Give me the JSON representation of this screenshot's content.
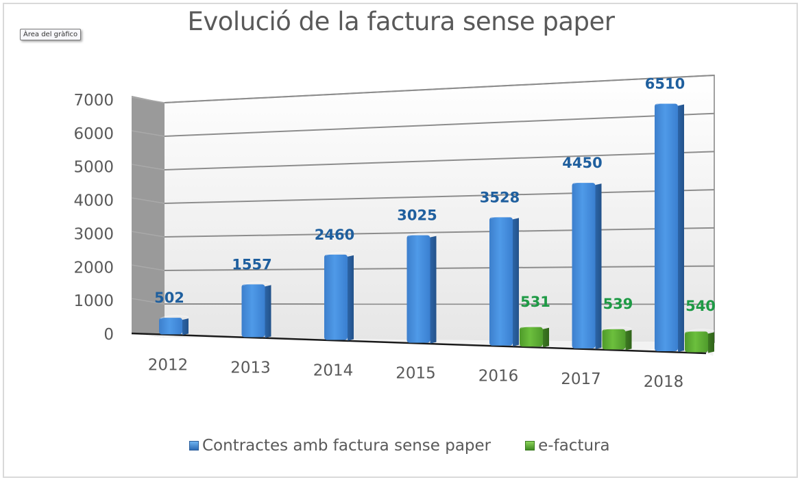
{
  "tooltip": "Àrea del gràfico",
  "chart_data": {
    "type": "bar",
    "title": "Evolució de la factura sense paper",
    "xlabel": "",
    "ylabel": "",
    "ylim": [
      0,
      7000
    ],
    "yticks": [
      "0",
      "1000",
      "2000",
      "3000",
      "4000",
      "5000",
      "6000",
      "7000"
    ],
    "grid": true,
    "legend_position": "bottom",
    "style": "3d-clustered-column",
    "categories": [
      "2012",
      "2013",
      "2014",
      "2015",
      "2016",
      "2017",
      "2018"
    ],
    "series": [
      {
        "name": "Contractes amb factura sense paper",
        "color": "#3a86d6",
        "label_color": "#1f5f9e",
        "values": [
          502,
          1557,
          2460,
          3025,
          3528,
          4450,
          6510
        ]
      },
      {
        "name": "e-factura",
        "color": "#5aa832",
        "label_color": "#1e9a45",
        "values": [
          null,
          null,
          null,
          null,
          531,
          539,
          540
        ]
      }
    ]
  },
  "legend": {
    "items": [
      {
        "label": "Contractes amb factura sense paper",
        "color": "#3a86d6"
      },
      {
        "label": "e-factura",
        "color": "#5aa832"
      }
    ]
  }
}
